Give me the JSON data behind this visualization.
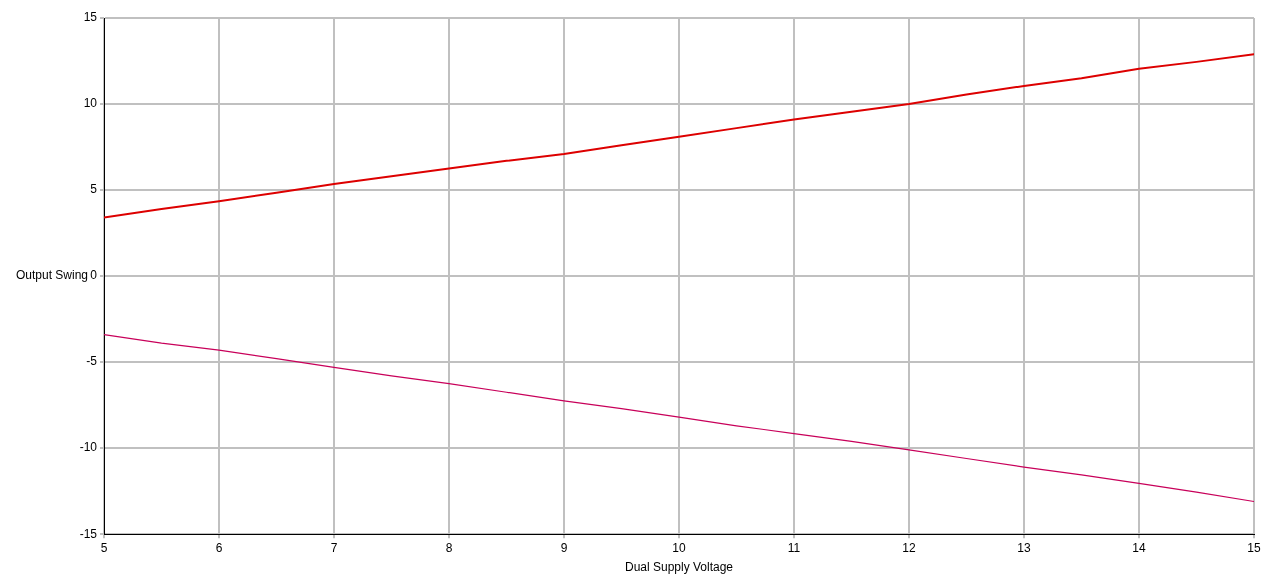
{
  "chart_data": {
    "type": "line",
    "xlabel": "Dual Supply Voltage",
    "ylabel": "Output Swing",
    "x": [
      5,
      5.5,
      6,
      6.5,
      7,
      7.5,
      8,
      8.5,
      9,
      9.5,
      10,
      10.5,
      11,
      11.5,
      12,
      12.5,
      13,
      13.5,
      14,
      14.5,
      15
    ],
    "series": [
      {
        "color": "#dd0000",
        "values": [
          3.4,
          3.9,
          4.35,
          4.85,
          5.35,
          5.8,
          6.25,
          6.7,
          7.1,
          7.6,
          8.1,
          8.6,
          9.1,
          9.55,
          10.0,
          10.55,
          11.05,
          11.5,
          12.05,
          12.45,
          12.9
        ]
      },
      {
        "color": "#c8005a",
        "values": [
          -3.4,
          -3.9,
          -4.3,
          -4.8,
          -5.3,
          -5.8,
          -6.25,
          -6.75,
          -7.25,
          -7.7,
          -8.2,
          -8.7,
          -9.15,
          -9.6,
          -10.1,
          -10.6,
          -11.1,
          -11.55,
          -12.05,
          -12.55,
          -13.1
        ]
      }
    ],
    "xlim": [
      5,
      15
    ],
    "xticks": [
      5,
      6,
      7,
      8,
      9,
      10,
      11,
      12,
      13,
      14,
      15
    ],
    "ylim": [
      -15,
      15
    ],
    "yticks": [
      -15,
      -10,
      -5,
      0,
      5,
      10,
      15
    ],
    "grid": true,
    "legend": false,
    "marker": "none",
    "line_style": "solid"
  }
}
